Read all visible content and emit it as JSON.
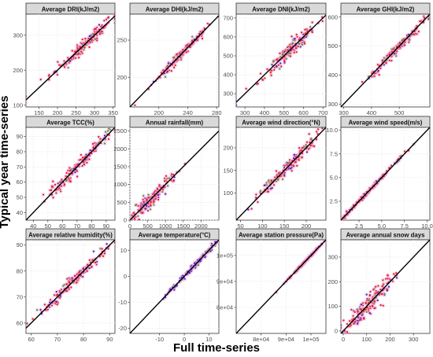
{
  "figure": {
    "ylabel": "Typical year time-series",
    "xlabel": "Full time-series"
  },
  "colors": {
    "points": [
      "#e0151b",
      "#c41e1a",
      "#2b1fd0",
      "#3a9a2a",
      "#f2a3d6"
    ],
    "line": "#000000",
    "strip_bg": "#d9d9d9",
    "grid": "#ebebeb"
  },
  "chart_data": [
    {
      "type": "scatter",
      "title": "Average DRI(kJ/m2)",
      "xlim": [
        115,
        355
      ],
      "ylim": [
        95,
        360
      ],
      "xticks": [
        150,
        200,
        250,
        300,
        350
      ],
      "yticks": [
        100,
        200,
        300
      ],
      "center": [
        270,
        265
      ],
      "spread": 45,
      "noise": 9
    },
    {
      "type": "scatter",
      "title": "Average DHI(kJ/m2)",
      "xlim": [
        160,
        283
      ],
      "ylim": [
        160,
        285
      ],
      "xticks": [
        200,
        240,
        280
      ],
      "yticks": [
        200,
        250
      ],
      "center": [
        228,
        228
      ],
      "spread": 18,
      "noise": 3
    },
    {
      "type": "scatter",
      "title": "Average DNI(kJ/m2)",
      "xlim": [
        255,
        715
      ],
      "ylim": [
        230,
        720
      ],
      "xticks": [
        300,
        400,
        500,
        600,
        700
      ],
      "yticks": [
        300,
        400,
        500,
        600,
        700
      ],
      "center": [
        520,
        520
      ],
      "spread": 75,
      "noise": 20
    },
    {
      "type": "scatter",
      "title": "Average GHI(kJ/m2)",
      "xlim": [
        290,
        610
      ],
      "ylim": [
        290,
        610
      ],
      "xticks": [
        300,
        400,
        500
      ],
      "yticks": [
        300,
        400,
        500,
        600
      ],
      "center": [
        490,
        490
      ],
      "spread": 55,
      "noise": 8
    },
    {
      "type": "scatter",
      "title": "Average TCC(%)",
      "xlim": [
        35,
        96
      ],
      "ylim": [
        35,
        96
      ],
      "xticks": [
        40,
        50,
        60,
        70,
        80,
        90
      ],
      "yticks": [
        40,
        50,
        60,
        70,
        80,
        90
      ],
      "center": [
        72,
        72
      ],
      "spread": 12,
      "noise": 2
    },
    {
      "type": "scatter",
      "title": "Annual rainfall(mm)",
      "xlim": [
        0,
        2500
      ],
      "ylim": [
        0,
        2600
      ],
      "xticks": [
        0,
        500,
        1000,
        1500,
        2000
      ],
      "yticks": [
        0,
        500,
        1000,
        1500,
        2000,
        2500
      ],
      "center": [
        600,
        600
      ],
      "spread": 380,
      "noise": 110
    },
    {
      "type": "scatter",
      "title": "Average wind direction(°N)",
      "xlim": [
        40,
        245
      ],
      "ylim": [
        40,
        245
      ],
      "xticks": [
        50,
        100,
        150,
        200
      ],
      "yticks": [
        100,
        150,
        200
      ],
      "center": [
        160,
        160
      ],
      "spread": 35,
      "noise": 7
    },
    {
      "type": "scatter",
      "title": "Average wind speed(m/s)",
      "xlim": [
        0.5,
        10.3
      ],
      "ylim": [
        0.5,
        10.3
      ],
      "xticks": [
        2.5,
        5.0,
        7.5,
        10.0
      ],
      "yticks": [
        2.5,
        5.0,
        7.5,
        10.0
      ],
      "xticklabels": [
        "2.5",
        "5.0",
        "7.5",
        "10.0"
      ],
      "yticklabels": [
        "2.5",
        "5.0",
        "7.5",
        "10.0"
      ],
      "center": [
        3.5,
        3.5
      ],
      "spread": 1.6,
      "noise": 0.12
    },
    {
      "type": "scatter",
      "title": "Average relative humidity(%)",
      "xlim": [
        58,
        92
      ],
      "ylim": [
        56,
        92
      ],
      "xticks": [
        60,
        70,
        80,
        90
      ],
      "yticks": [
        60,
        70,
        80,
        90
      ],
      "center": [
        77,
        77
      ],
      "spread": 7,
      "noise": 1.3
    },
    {
      "type": "scatter",
      "title": "Average temperature(°C)",
      "xlim": [
        -22,
        14
      ],
      "ylim": [
        -22,
        14
      ],
      "xticks": [
        -10,
        0,
        10
      ],
      "yticks": [
        -20,
        -10,
        0,
        10
      ],
      "center": [
        5,
        5
      ],
      "spread": 6,
      "noise": 0.5
    },
    {
      "type": "scatter",
      "title": "Average station pressure(Pa)",
      "xlim": [
        70000,
        106000
      ],
      "ylim": [
        70000,
        106000
      ],
      "xticks": [
        80000,
        90000,
        100000
      ],
      "yticks": [
        80000,
        90000,
        100000
      ],
      "xticklabels": [
        "8e+04",
        "9e+04",
        "1e+05"
      ],
      "yticklabels": [
        "8e+04",
        "9e+04",
        "1e+05"
      ],
      "center": [
        98000,
        98000
      ],
      "spread": 3500,
      "noise": 150
    },
    {
      "type": "scatter",
      "title": "Average annual snow days",
      "xlim": [
        -10,
        370
      ],
      "ylim": [
        -10,
        370
      ],
      "xticks": [
        0,
        100,
        200,
        300
      ],
      "yticks": [
        0,
        100,
        200,
        300
      ],
      "center": [
        110,
        110
      ],
      "spread": 55,
      "noise": 22
    }
  ]
}
